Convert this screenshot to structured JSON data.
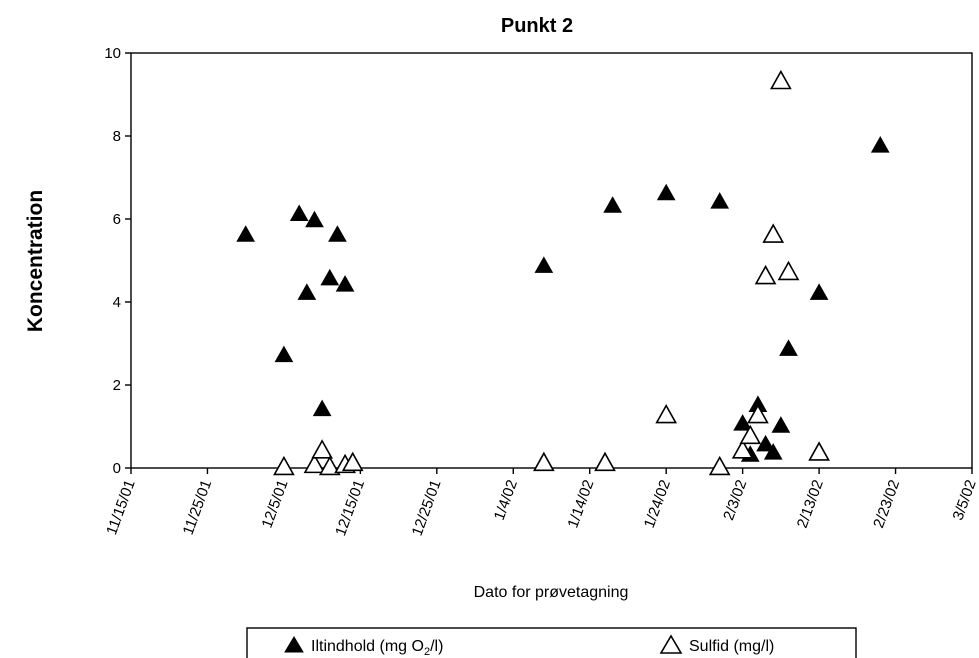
{
  "chart_data": {
    "type": "scatter",
    "title": "Punkt 2",
    "xlabel": "Dato for prøvetagning",
    "ylabel": "Koncentration",
    "xlim": [
      "2001-11-15",
      "2002-03-05"
    ],
    "ylim": [
      0,
      10
    ],
    "y_ticks": [
      "0",
      "2",
      "4",
      "6",
      "8",
      "10"
    ],
    "x_ticks": [
      {
        "date": "2001-11-15",
        "label": "11/15/01"
      },
      {
        "date": "2001-11-25",
        "label": "11/25/01"
      },
      {
        "date": "2001-12-05",
        "label": "12/5/01"
      },
      {
        "date": "2001-12-15",
        "label": "12/15/01"
      },
      {
        "date": "2001-12-25",
        "label": "12/25/01"
      },
      {
        "date": "2002-01-04",
        "label": "1/4/02"
      },
      {
        "date": "2002-01-14",
        "label": "1/14/02"
      },
      {
        "date": "2002-01-24",
        "label": "1/24/02"
      },
      {
        "date": "2002-02-03",
        "label": "2/3/02"
      },
      {
        "date": "2002-02-13",
        "label": "2/13/02"
      },
      {
        "date": "2002-02-23",
        "label": "2/23/02"
      },
      {
        "date": "2002-03-05",
        "label": "3/5/02"
      }
    ],
    "grid": false,
    "legend_position": "bottom",
    "series": [
      {
        "name": "Iltindhold (mg O2/l)",
        "marker": "filled-triangle",
        "color": "#000000",
        "points": [
          {
            "x": "2001-11-30",
            "y": 5.6
          },
          {
            "x": "2001-12-05",
            "y": 2.7
          },
          {
            "x": "2001-12-07",
            "y": 6.1
          },
          {
            "x": "2001-12-08",
            "y": 4.2
          },
          {
            "x": "2001-12-09",
            "y": 5.95
          },
          {
            "x": "2001-12-10",
            "y": 1.4
          },
          {
            "x": "2001-12-11",
            "y": 4.55
          },
          {
            "x": "2001-12-12",
            "y": 5.6
          },
          {
            "x": "2001-12-13",
            "y": 4.4
          },
          {
            "x": "2002-01-08",
            "y": 4.85
          },
          {
            "x": "2002-01-17",
            "y": 6.3
          },
          {
            "x": "2002-01-24",
            "y": 6.6
          },
          {
            "x": "2002-01-31",
            "y": 6.4
          },
          {
            "x": "2002-02-03",
            "y": 1.05
          },
          {
            "x": "2002-02-04",
            "y": 0.3
          },
          {
            "x": "2002-02-05",
            "y": 1.5
          },
          {
            "x": "2002-02-06",
            "y": 0.55
          },
          {
            "x": "2002-02-07",
            "y": 0.35
          },
          {
            "x": "2002-02-08",
            "y": 1.0
          },
          {
            "x": "2002-02-09",
            "y": 2.85
          },
          {
            "x": "2002-02-13",
            "y": 4.2
          },
          {
            "x": "2002-02-21",
            "y": 7.75
          }
        ]
      },
      {
        "name": "Sulfid (mg/l)",
        "marker": "open-triangle",
        "color": "#000000",
        "points": [
          {
            "x": "2001-12-05",
            "y": 0.0
          },
          {
            "x": "2001-12-09",
            "y": 0.05
          },
          {
            "x": "2001-12-10",
            "y": 0.4
          },
          {
            "x": "2001-12-11",
            "y": 0.0
          },
          {
            "x": "2001-12-13",
            "y": 0.05
          },
          {
            "x": "2001-12-14",
            "y": 0.1
          },
          {
            "x": "2002-01-08",
            "y": 0.1
          },
          {
            "x": "2002-01-16",
            "y": 0.1
          },
          {
            "x": "2002-01-24",
            "y": 1.25
          },
          {
            "x": "2002-01-31",
            "y": 0.0
          },
          {
            "x": "2002-02-03",
            "y": 0.4
          },
          {
            "x": "2002-02-04",
            "y": 0.75
          },
          {
            "x": "2002-02-05",
            "y": 1.25
          },
          {
            "x": "2002-02-06",
            "y": 4.6
          },
          {
            "x": "2002-02-07",
            "y": 5.6
          },
          {
            "x": "2002-02-08",
            "y": 9.3
          },
          {
            "x": "2002-02-09",
            "y": 4.7
          },
          {
            "x": "2002-02-13",
            "y": 0.35
          }
        ]
      }
    ],
    "legend": {
      "iltindhold_prefix": "Iltindhold (mg O",
      "iltindhold_subscript": "2",
      "iltindhold_suffix": "/l)",
      "sulfid": "Sulfid (mg/l)"
    }
  }
}
